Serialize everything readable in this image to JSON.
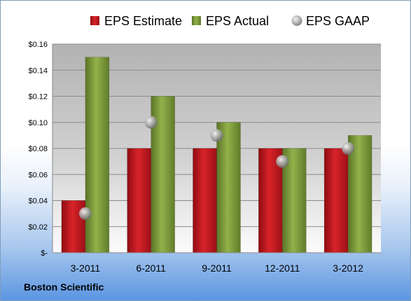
{
  "company": "Boston Scientific",
  "chart_data": {
    "type": "bar",
    "categories": [
      "3-2011",
      "6-2011",
      "9-2011",
      "12-2011",
      "3-2012"
    ],
    "series": [
      {
        "name": "EPS Estimate",
        "kind": "bar",
        "color": "#c0141b",
        "values": [
          0.04,
          0.08,
          0.08,
          0.08,
          0.08
        ]
      },
      {
        "name": "EPS Actual",
        "kind": "bar",
        "color": "#7d9b3b",
        "values": [
          0.15,
          0.12,
          0.1,
          0.08,
          0.09
        ]
      },
      {
        "name": "EPS GAAP",
        "kind": "marker",
        "color": "#9a9a9a",
        "values": [
          0.03,
          0.1,
          0.09,
          0.07,
          0.08
        ]
      }
    ],
    "y_ticks": [
      {
        "value": 0,
        "label": "$-"
      },
      {
        "value": 0.02,
        "label": "$0.02"
      },
      {
        "value": 0.04,
        "label": "$0.04"
      },
      {
        "value": 0.06,
        "label": "$0.06"
      },
      {
        "value": 0.08,
        "label": "$0.08"
      },
      {
        "value": 0.1,
        "label": "$0.10"
      },
      {
        "value": 0.12,
        "label": "$0.12"
      },
      {
        "value": 0.14,
        "label": "$0.14"
      },
      {
        "value": 0.16,
        "label": "$0.16"
      }
    ],
    "ylim": [
      0,
      0.16
    ],
    "grid": true,
    "legend_position": "top",
    "title": "",
    "xlabel": "",
    "ylabel": ""
  }
}
